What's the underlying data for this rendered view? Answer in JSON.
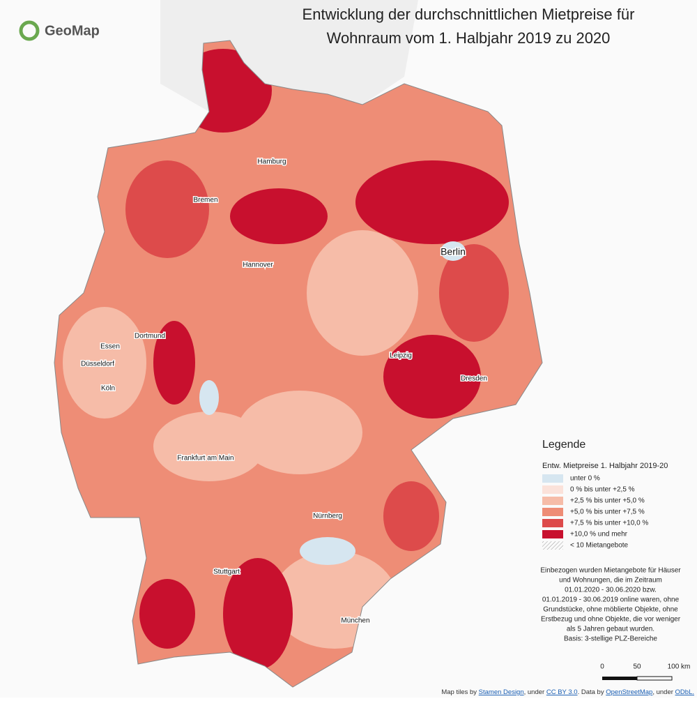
{
  "logo": "GeoMap",
  "title": [
    "Entwicklung der durchschnittlichen Mietpreise für",
    "Wohnraum vom 1. Halbjahr 2019 zu 2020"
  ],
  "cities": [
    "Hamburg",
    "Bremen",
    "Hannover",
    "Berlin",
    "Dortmund",
    "Essen",
    "Düsseldorf",
    "Köln",
    "Leipzig",
    "Dresden",
    "Frankfurt am Main",
    "Nürnberg",
    "Stuttgart",
    "München"
  ],
  "legend": {
    "title": "Legende",
    "subtitle": "Entw. Mietpreise 1. Halbjahr 2019-20",
    "items": [
      {
        "label": "unter 0 %",
        "color": "#d6e6f0"
      },
      {
        "label": "0 % bis unter +2,5 %",
        "color": "#fbe2da"
      },
      {
        "label": "+2,5 % bis unter +5,0 %",
        "color": "#f6bca8"
      },
      {
        "label": "+5,0 % bis unter +7,5 %",
        "color": "#ee8d76"
      },
      {
        "label": "+7,5 % bis unter +10,0 %",
        "color": "#dd4b4b"
      },
      {
        "label": "+10,0 % und mehr",
        "color": "#c8102e"
      }
    ],
    "hatch": "< 10 Mietangebote"
  },
  "notes": [
    "Einbezogen wurden Mietangebote für Häuser",
    "und Wohnungen, die im Zeitraum",
    "01.01.2020 -  30.06.2020 bzw.",
    "01.01.2019 - 30.06.2019 online waren, ohne",
    "Grundstücke, ohne möblierte Objekte, ohne",
    "Erstbezug und ohne Objekte, die vor weniger",
    "als 5 Jahren gebaut wurden.",
    "Basis: 3-stellige PLZ-Bereiche"
  ],
  "scale": [
    "0",
    "50",
    "100 km"
  ],
  "attribution": [
    "Map tiles by ",
    "Stamen Design",
    ", under ",
    "CC BY 3.0",
    ". Data by ",
    "OpenStreetMap",
    ", under ",
    "ODbL."
  ]
}
